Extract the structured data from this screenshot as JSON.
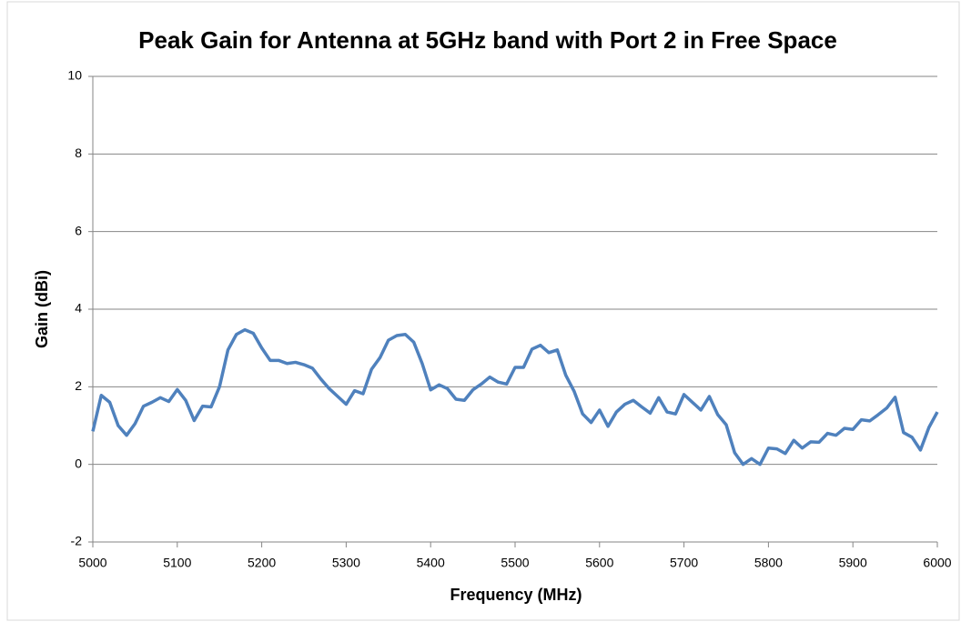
{
  "chart_data": {
    "type": "line",
    "title": "Peak Gain for Antenna at 5GHz band with Port 2 in Free Space",
    "x_label": "Frequency  (MHz)",
    "y_label": "Gain (dBi)",
    "x": [
      5000,
      5010,
      5020,
      5030,
      5040,
      5050,
      5060,
      5070,
      5080,
      5090,
      5100,
      5110,
      5120,
      5130,
      5140,
      5150,
      5160,
      5170,
      5180,
      5190,
      5200,
      5210,
      5220,
      5230,
      5240,
      5250,
      5260,
      5270,
      5280,
      5290,
      5300,
      5310,
      5320,
      5330,
      5340,
      5350,
      5360,
      5370,
      5380,
      5390,
      5400,
      5410,
      5420,
      5430,
      5440,
      5450,
      5460,
      5470,
      5480,
      5490,
      5500,
      5510,
      5520,
      5530,
      5540,
      5550,
      5560,
      5570,
      5580,
      5590,
      5600,
      5610,
      5620,
      5630,
      5640,
      5650,
      5660,
      5670,
      5680,
      5690,
      5700,
      5710,
      5720,
      5730,
      5740,
      5750,
      5760,
      5770,
      5780,
      5790,
      5800,
      5810,
      5820,
      5830,
      5840,
      5850,
      5860,
      5870,
      5880,
      5890,
      5900,
      5910,
      5920,
      5930,
      5940,
      5950,
      5960,
      5970,
      5980,
      5990,
      6000
    ],
    "series": [
      {
        "name": "Gain",
        "color": "#4f81bd",
        "values": [
          0.85,
          1.78,
          1.6,
          1.0,
          0.75,
          1.05,
          1.5,
          1.6,
          1.72,
          1.62,
          1.93,
          1.65,
          1.13,
          1.5,
          1.48,
          2.0,
          2.95,
          3.35,
          3.47,
          3.38,
          3.0,
          2.68,
          2.68,
          2.6,
          2.63,
          2.57,
          2.48,
          2.2,
          1.95,
          1.75,
          1.55,
          1.9,
          1.82,
          2.45,
          2.75,
          3.2,
          3.32,
          3.35,
          3.15,
          2.6,
          1.92,
          2.05,
          1.95,
          1.68,
          1.65,
          1.92,
          2.07,
          2.25,
          2.12,
          2.07,
          2.5,
          2.5,
          2.97,
          3.07,
          2.88,
          2.95,
          2.3,
          1.88,
          1.3,
          1.08,
          1.4,
          0.98,
          1.35,
          1.55,
          1.65,
          1.48,
          1.32,
          1.72,
          1.35,
          1.3,
          1.8,
          1.6,
          1.4,
          1.75,
          1.28,
          1.02,
          0.3,
          0.0,
          0.15,
          0.0,
          0.42,
          0.4,
          0.28,
          0.62,
          0.42,
          0.58,
          0.57,
          0.8,
          0.75,
          0.93,
          0.9,
          1.15,
          1.12,
          1.28,
          1.45,
          1.73,
          0.82,
          0.7,
          0.37,
          0.95,
          1.35
        ]
      }
    ],
    "xlim": [
      5000,
      6000
    ],
    "xticks": [
      5000,
      5100,
      5200,
      5300,
      5400,
      5500,
      5600,
      5700,
      5800,
      5900,
      6000
    ],
    "ylim": [
      -2,
      10
    ],
    "yticks": [
      -2,
      0,
      2,
      4,
      6,
      8,
      10
    ],
    "grid": true
  }
}
